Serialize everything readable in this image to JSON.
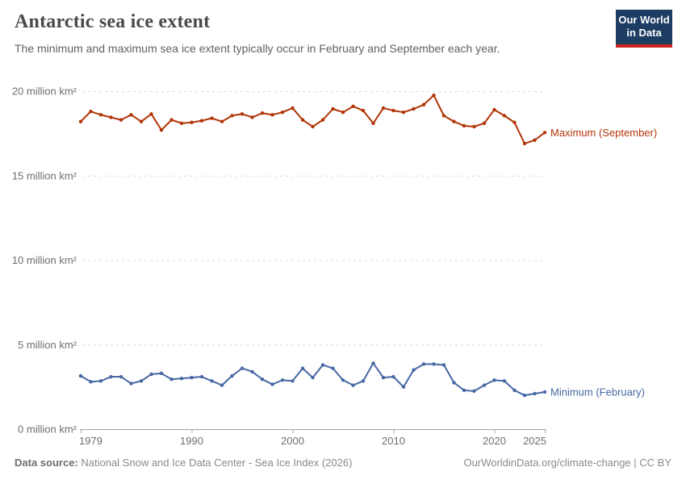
{
  "header": {
    "title": "Antarctic sea ice extent",
    "subtitle": "The minimum and maximum sea ice extent typically occur in February and September each year.",
    "logo_line1": "Our World",
    "logo_line2": "in Data"
  },
  "chart_data": {
    "type": "line",
    "title": "Antarctic sea ice extent",
    "xlabel": "",
    "ylabel": "million km²",
    "xlim": [
      1979,
      2025
    ],
    "ylim": [
      0,
      20
    ],
    "grid": "horizontal-dashed",
    "legend_position": "end-of-line-labels",
    "xticks": [
      1979,
      1990,
      2000,
      2010,
      2020,
      2025
    ],
    "yticks": [
      0,
      5,
      10,
      15,
      20
    ],
    "ytick_labels": [
      "0 million km²",
      "5 million km²",
      "10 million km²",
      "15 million km²",
      "20 million km²"
    ],
    "x": [
      1979,
      1980,
      1981,
      1982,
      1983,
      1984,
      1985,
      1986,
      1987,
      1988,
      1989,
      1990,
      1991,
      1992,
      1993,
      1994,
      1995,
      1996,
      1997,
      1998,
      1999,
      2000,
      2001,
      2002,
      2003,
      2004,
      2005,
      2006,
      2007,
      2008,
      2009,
      2010,
      2011,
      2012,
      2013,
      2014,
      2015,
      2016,
      2017,
      2018,
      2019,
      2020,
      2021,
      2022,
      2023,
      2024,
      2025
    ],
    "series": [
      {
        "name": "Maximum (September)",
        "color": "#b13507",
        "values": [
          18.2,
          18.8,
          18.6,
          18.45,
          18.3,
          18.6,
          18.2,
          18.65,
          17.7,
          18.3,
          18.1,
          18.15,
          18.25,
          18.4,
          18.2,
          18.55,
          18.65,
          18.45,
          18.7,
          18.6,
          18.75,
          19.0,
          18.3,
          17.9,
          18.3,
          18.95,
          18.75,
          19.1,
          18.85,
          18.1,
          19.0,
          18.85,
          18.75,
          18.95,
          19.2,
          19.75,
          18.55,
          18.2,
          17.95,
          17.9,
          18.1,
          18.9,
          18.55,
          18.15,
          16.9,
          17.1,
          17.55
        ]
      },
      {
        "name": "Minimum (February)",
        "color": "#4668a3",
        "values": [
          3.15,
          2.8,
          2.85,
          3.1,
          3.1,
          2.7,
          2.85,
          3.25,
          3.3,
          2.95,
          3.0,
          3.05,
          3.1,
          2.85,
          2.6,
          3.15,
          3.6,
          3.4,
          2.95,
          2.65,
          2.9,
          2.85,
          3.6,
          3.05,
          3.8,
          3.6,
          2.9,
          2.6,
          2.85,
          3.9,
          3.05,
          3.1,
          2.5,
          3.5,
          3.85,
          3.85,
          3.8,
          2.75,
          2.3,
          2.25,
          2.6,
          2.9,
          2.85,
          2.3,
          2.0,
          2.1,
          2.2
        ]
      }
    ]
  },
  "footer": {
    "datasource_label": "Data source:",
    "datasource_text": "National Snow and Ice Data Center - Sea Ice Index (2026)",
    "attribution": "OurWorldinData.org/climate-change | CC BY"
  }
}
